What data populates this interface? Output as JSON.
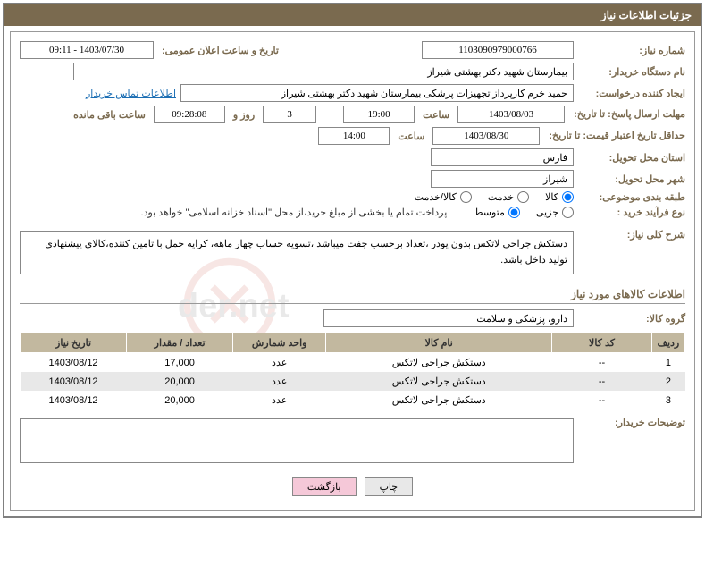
{
  "header": {
    "title": "جزئیات اطلاعات نیاز"
  },
  "fields": {
    "reqNumber": {
      "label": "شماره نیاز:",
      "value": "1103090979000766"
    },
    "announceDate": {
      "label": "تاریخ و ساعت اعلان عمومی:",
      "value": "1403/07/30 - 09:11"
    },
    "buyerOrg": {
      "label": "نام دستگاه خریدار:",
      "value": "بیمارستان شهید دکتر بهشتی شیراز"
    },
    "requester": {
      "label": "ایجاد کننده درخواست:",
      "value": "حمید خرم کارپرداز تجهیزات پزشکی بیمارستان شهید دکتر بهشتی شیراز"
    },
    "contactLink": "اطلاعات تماس خریدار",
    "deadline": {
      "label": "مهلت ارسال پاسخ: تا تاریخ:",
      "date": "1403/08/03",
      "timeLabel": "ساعت",
      "time": "19:00",
      "daysVal": "3",
      "daysLabel": "روز و",
      "remainTime": "09:28:08",
      "remainLabel": "ساعت باقی مانده"
    },
    "validity": {
      "label": "حداقل تاریخ اعتبار قیمت: تا تاریخ:",
      "date": "1403/08/30",
      "timeLabel": "ساعت",
      "time": "14:00"
    },
    "province": {
      "label": "استان محل تحویل:",
      "value": "فارس"
    },
    "city": {
      "label": "شهر محل تحویل:",
      "value": "شیراز"
    },
    "category": {
      "label": "طبقه بندی موضوعی:",
      "options": [
        "کالا",
        "خدمت",
        "کالا/خدمت"
      ],
      "selected": 0
    },
    "purchaseType": {
      "label": "نوع فرآیند خرید :",
      "options": [
        "جزیی",
        "متوسط"
      ],
      "selected": 1,
      "note": "پرداخت تمام یا بخشی از مبلغ خرید،از محل \"اسناد خزانه اسلامی\" خواهد بود."
    },
    "overallDesc": {
      "label": "شرح کلی نیاز:",
      "text": "دستکش جراحی لاتکس بدون پودر ،تعداد برحسب جفت میباشد ،تسویه حساب چهار ماهه، کرایه حمل با تامین کننده،کالای پیشنهادی تولید داخل باشد."
    },
    "itemsSection": "اطلاعات کالاهای مورد نیاز",
    "goodsGroup": {
      "label": "گروه کالا:",
      "value": "دارو، پزشکی و سلامت"
    },
    "buyerNotes": {
      "label": "توضیحات خریدار:"
    }
  },
  "table": {
    "headers": [
      "ردیف",
      "کد کالا",
      "نام کالا",
      "واحد شمارش",
      "تعداد / مقدار",
      "تاریخ نیاز"
    ],
    "widths": [
      "5%",
      "15%",
      "34%",
      "14%",
      "16%",
      "16%"
    ],
    "rows": [
      [
        "1",
        "--",
        "دستکش جراحی لاتکس",
        "عدد",
        "17,000",
        "1403/08/12"
      ],
      [
        "2",
        "--",
        "دستکش جراحی لاتکس",
        "عدد",
        "20,000",
        "1403/08/12"
      ],
      [
        "3",
        "--",
        "دستکش جراحی لاتکس",
        "عدد",
        "20,000",
        "1403/08/12"
      ]
    ]
  },
  "buttons": {
    "print": "چاپ",
    "back": "بازگشت"
  },
  "colors": {
    "headerBg": "#7a6a4f",
    "tableHeaderBg": "#c2b89f",
    "link": "#1a6db3",
    "backBtn": "#f5c8d8"
  }
}
